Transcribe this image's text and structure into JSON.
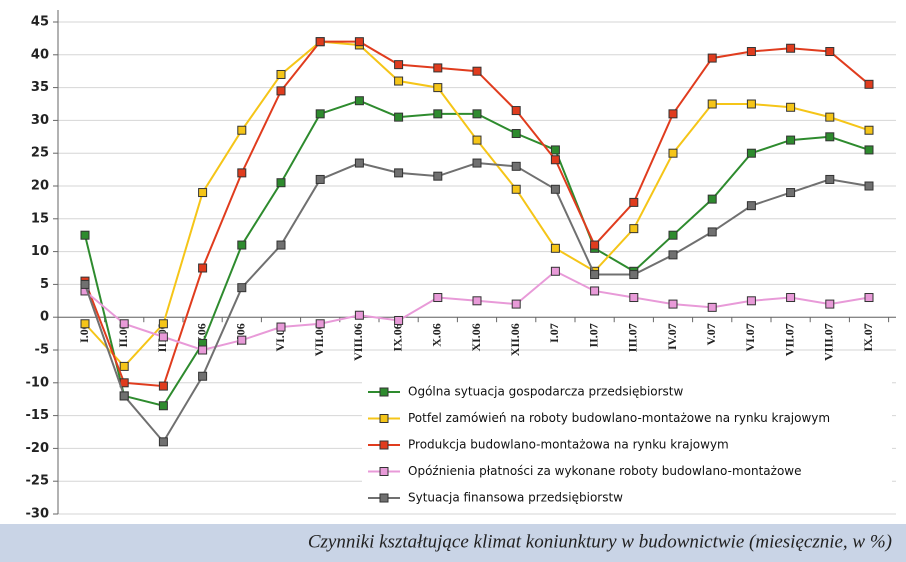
{
  "chart_data": {
    "type": "line",
    "title": "Czynniki kształtujące klimat koniunktury w budownictwie (miesięcznie, w %)",
    "categories": [
      "I.06",
      "II.06",
      "III.06",
      "IV.06",
      "V.06",
      "VI.06",
      "VII.06",
      "VIII.06",
      "IX.06",
      "X.06",
      "XI.06",
      "XII.06",
      "I.07",
      "II.07",
      "III.07",
      "IV.07",
      "V.07",
      "VI.07",
      "VII.07",
      "VIII.07",
      "IX.07"
    ],
    "series": [
      {
        "name": "Ogólna sytuacja gospodarcza przedsiębiorstw",
        "color": "#2e8b2e",
        "values": [
          12.5,
          -12,
          -13.5,
          -4,
          11,
          20.5,
          31,
          33,
          30.5,
          31,
          31,
          28,
          25.5,
          10.5,
          7,
          12.5,
          18,
          25,
          27,
          27.5,
          25.5
        ]
      },
      {
        "name": "Potfel zamówień na roboty budowlano-montażowe na rynku krajowym",
        "color": "#f5c518",
        "values": [
          -1,
          -7.5,
          -1,
          19,
          28.5,
          37,
          42,
          41.5,
          36,
          35,
          27,
          19.5,
          10.5,
          7,
          13.5,
          25,
          32.5,
          32.5,
          32,
          30.5,
          28.5
        ]
      },
      {
        "name": "Produkcja budowlano-montażowa na rynku krajowym",
        "color": "#e03c1e",
        "values": [
          5.5,
          -10,
          -10.5,
          7.5,
          22,
          34.5,
          42,
          42,
          38.5,
          38,
          37.5,
          31.5,
          24,
          11,
          17.5,
          31,
          39.5,
          40.5,
          41,
          40.5,
          35.5
        ]
      },
      {
        "name": "Opóźnienia płatności za wykonane roboty budowlano-montażowe",
        "color": "#e89ad8",
        "values": [
          4,
          -1,
          -3,
          -5,
          -3.5,
          -1.5,
          -1,
          0.3,
          -0.5,
          3,
          2.5,
          2,
          7,
          4,
          3,
          2,
          1.5,
          2.5,
          3,
          2,
          3
        ]
      },
      {
        "name": "Sytuacja finansowa przedsiębiorstw",
        "color": "#707070",
        "values": [
          5,
          -12,
          -19,
          -9,
          4.5,
          11,
          21,
          23.5,
          22,
          21.5,
          23.5,
          23,
          19.5,
          6.5,
          6.5,
          9.5,
          13,
          17,
          19,
          21,
          20
        ]
      }
    ],
    "ylim": [
      -30,
      45
    ],
    "yticks": [
      -30,
      -25,
      -20,
      -15,
      -10,
      -5,
      0,
      5,
      10,
      15,
      20,
      25,
      30,
      35,
      40,
      45
    ],
    "grid": true
  }
}
